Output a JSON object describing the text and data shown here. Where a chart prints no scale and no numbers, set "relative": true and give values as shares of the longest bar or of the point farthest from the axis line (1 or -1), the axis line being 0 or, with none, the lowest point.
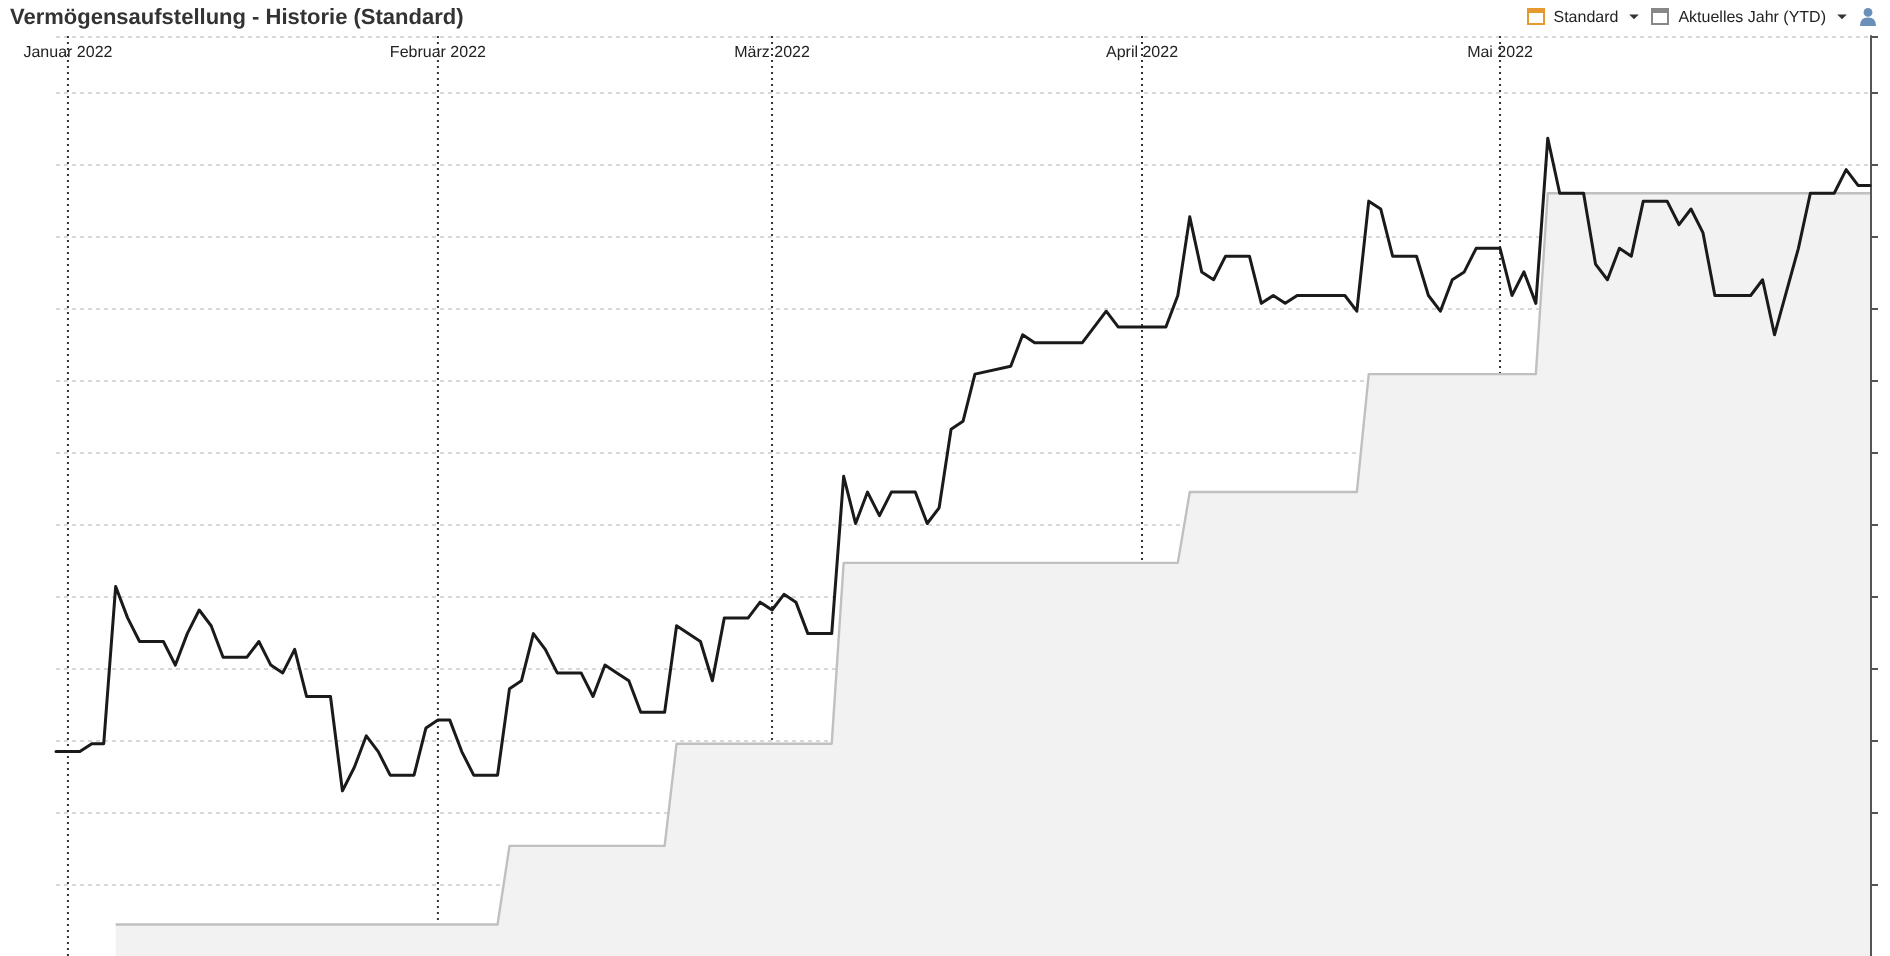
{
  "chart_data": {
    "type": "line",
    "title": "Vermögensaufstellung - Historie (Standard)",
    "annotations": [
      "Standard",
      "Aktuelles Jahr (YTD)"
    ],
    "relative": true,
    "grid": true,
    "marker": "none",
    "line_style": "solid",
    "tick_labels": "x",
    "xlim": [
      "2021-12-31",
      "2022-06-01"
    ],
    "xticks": [
      {
        "value": "2022-01-01",
        "label": "Januar 2022"
      },
      {
        "value": "2022-02-01",
        "label": "Februar 2022"
      },
      {
        "value": "2022-03-01",
        "label": "März 2022"
      },
      {
        "value": "2022-04-01",
        "label": "April 2022"
      },
      {
        "value": "2022-05-01",
        "label": "Mai 2022"
      }
    ],
    "series": [
      {
        "type": "area",
        "color": "#c0c0c0",
        "x": [
          "2022-01-05",
          "2022-02-06",
          "2022-02-07",
          "2022-02-20",
          "2022-02-21",
          "2022-03-06",
          "2022-03-07",
          "2022-04-04",
          "2022-04-05",
          "2022-04-19",
          "2022-04-20",
          "2022-05-04",
          "2022-05-05",
          "2022-06-01"
        ],
        "values": [
          0,
          0,
          0.1,
          0.1,
          0.23,
          0.23,
          0.46,
          0.46,
          0.55,
          0.55,
          0.7,
          0.7,
          0.93,
          0.93
        ]
      },
      {
        "color": "#1a1a1a",
        "x": [
          "2021-12-31",
          "2022-01-02",
          "2022-01-03",
          "2022-01-04",
          "2022-01-05",
          "2022-01-06",
          "2022-01-07",
          "2022-01-09",
          "2022-01-10",
          "2022-01-11",
          "2022-01-12",
          "2022-01-13",
          "2022-01-14",
          "2022-01-16",
          "2022-01-17",
          "2022-01-18",
          "2022-01-19",
          "2022-01-20",
          "2022-01-21",
          "2022-01-23",
          "2022-01-24",
          "2022-01-25",
          "2022-01-26",
          "2022-01-27",
          "2022-01-28",
          "2022-01-30",
          "2022-01-31",
          "2022-02-01",
          "2022-02-02",
          "2022-02-03",
          "2022-02-04",
          "2022-02-06",
          "2022-02-07",
          "2022-02-08",
          "2022-02-09",
          "2022-02-10",
          "2022-02-11",
          "2022-02-13",
          "2022-02-14",
          "2022-02-15",
          "2022-02-16",
          "2022-02-17",
          "2022-02-18",
          "2022-02-20",
          "2022-02-21",
          "2022-02-23",
          "2022-02-24",
          "2022-02-25",
          "2022-02-27",
          "2022-02-28",
          "2022-03-01",
          "2022-03-02",
          "2022-03-03",
          "2022-03-04",
          "2022-03-06",
          "2022-03-07",
          "2022-03-08",
          "2022-03-09",
          "2022-03-10",
          "2022-03-11",
          "2022-03-13",
          "2022-03-14",
          "2022-03-15",
          "2022-03-16",
          "2022-03-17",
          "2022-03-18",
          "2022-03-21",
          "2022-03-22",
          "2022-03-23",
          "2022-03-27",
          "2022-03-29",
          "2022-03-30",
          "2022-03-31",
          "2022-04-03",
          "2022-04-04",
          "2022-04-05",
          "2022-04-06",
          "2022-04-07",
          "2022-04-08",
          "2022-04-10",
          "2022-04-11",
          "2022-04-12",
          "2022-04-13",
          "2022-04-14",
          "2022-04-18",
          "2022-04-19",
          "2022-04-20",
          "2022-04-21",
          "2022-04-22",
          "2022-04-24",
          "2022-04-25",
          "2022-04-26",
          "2022-04-27",
          "2022-04-28",
          "2022-04-29",
          "2022-05-01",
          "2022-05-02",
          "2022-05-03",
          "2022-05-04",
          "2022-05-05",
          "2022-05-06",
          "2022-05-08",
          "2022-05-09",
          "2022-05-10",
          "2022-05-11",
          "2022-05-12",
          "2022-05-13",
          "2022-05-15",
          "2022-05-16",
          "2022-05-17",
          "2022-05-18",
          "2022-05-19",
          "2022-05-22",
          "2022-05-23",
          "2022-05-24",
          "2022-05-26",
          "2022-05-27",
          "2022-05-29",
          "2022-05-30",
          "2022-05-31",
          "2022-06-01"
        ],
        "values": [
          0.22,
          0.22,
          0.23,
          0.23,
          0.43,
          0.39,
          0.36,
          0.36,
          0.33,
          0.37,
          0.4,
          0.38,
          0.34,
          0.34,
          0.36,
          0.33,
          0.32,
          0.35,
          0.29,
          0.29,
          0.17,
          0.2,
          0.24,
          0.22,
          0.19,
          0.19,
          0.25,
          0.26,
          0.26,
          0.22,
          0.19,
          0.19,
          0.3,
          0.31,
          0.37,
          0.35,
          0.32,
          0.32,
          0.29,
          0.33,
          0.32,
          0.31,
          0.27,
          0.27,
          0.38,
          0.36,
          0.31,
          0.39,
          0.39,
          0.41,
          0.4,
          0.42,
          0.41,
          0.37,
          0.37,
          0.57,
          0.51,
          0.55,
          0.52,
          0.55,
          0.55,
          0.51,
          0.53,
          0.63,
          0.64,
          0.7,
          0.71,
          0.75,
          0.74,
          0.74,
          0.78,
          0.76,
          0.76,
          0.76,
          0.8,
          0.9,
          0.83,
          0.82,
          0.85,
          0.85,
          0.79,
          0.8,
          0.79,
          0.8,
          0.8,
          0.78,
          0.92,
          0.91,
          0.85,
          0.85,
          0.8,
          0.78,
          0.82,
          0.83,
          0.86,
          0.86,
          0.8,
          0.83,
          0.79,
          1,
          0.93,
          0.93,
          0.84,
          0.82,
          0.86,
          0.85,
          0.92,
          0.92,
          0.89,
          0.91,
          0.88,
          0.8,
          0.8,
          0.82,
          0.75,
          0.86,
          0.93,
          0.93,
          0.96,
          0.94,
          0.94
        ]
      }
    ]
  }
}
